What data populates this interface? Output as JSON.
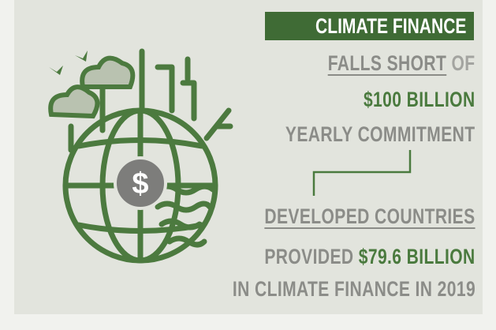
{
  "headline": {
    "badge": "CLIMATE FINANCE",
    "line1": {
      "underlined": "FALLS SHORT",
      "rest": "OF"
    },
    "line2": "$100 BILLION",
    "line3": "YEARLY COMMITMENT"
  },
  "result": {
    "line1": "DEVELOPED COUNTRIES",
    "line2": {
      "lead": "PROVIDED",
      "amount": "$79.6 BILLION"
    },
    "line3": "IN CLIMATE FINANCE IN 2019"
  },
  "icon": {
    "coin": "$"
  }
}
